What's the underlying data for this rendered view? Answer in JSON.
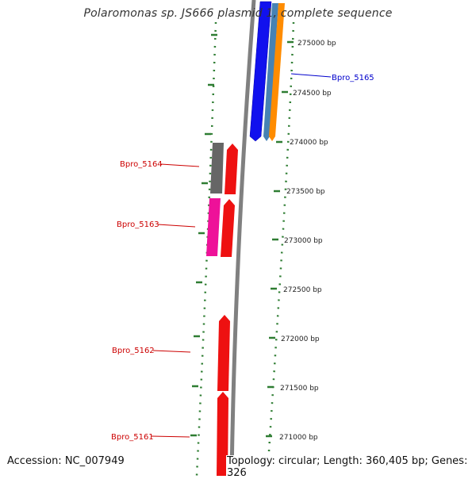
{
  "title": "Polaromonas sp. JS666 plasmid 1, complete sequence",
  "accession_text": "Accession: NC_007949",
  "summary_text": "Topology: circular; Length: 360,405 bp; Genes: 326",
  "ticks": [
    {
      "label": "275000 bp",
      "value": 275000
    },
    {
      "label": "274500 bp",
      "value": 274500
    },
    {
      "label": "274000 bp",
      "value": 274000
    },
    {
      "label": "273500 bp",
      "value": 273500
    },
    {
      "label": "273000 bp",
      "value": 273000
    },
    {
      "label": "272500 bp",
      "value": 272500
    },
    {
      "label": "272000 bp",
      "value": 272000
    },
    {
      "label": "271500 bp",
      "value": 271500
    },
    {
      "label": "271000 bp",
      "value": 271000
    }
  ],
  "gene_labels": [
    {
      "text": "Bpro_5165",
      "color": "#0000cc"
    },
    {
      "text": "Bpro_5164",
      "color": "#cc0000"
    },
    {
      "text": "Bpro_5163",
      "color": "#cc0000"
    },
    {
      "text": "Bpro_5162",
      "color": "#cc0000"
    },
    {
      "text": "Bpro_5161",
      "color": "#cc0000"
    }
  ],
  "colors": {
    "backbone": "#808080",
    "tick_mark": "#2e7d32",
    "forward_gene": "#ee1111",
    "dark_gene": "#666666",
    "pink_gene": "#ee1199",
    "blue_gene": "#1111ee",
    "steelblue_gene": "#4682b4",
    "orange_gene": "#ff8c00"
  }
}
